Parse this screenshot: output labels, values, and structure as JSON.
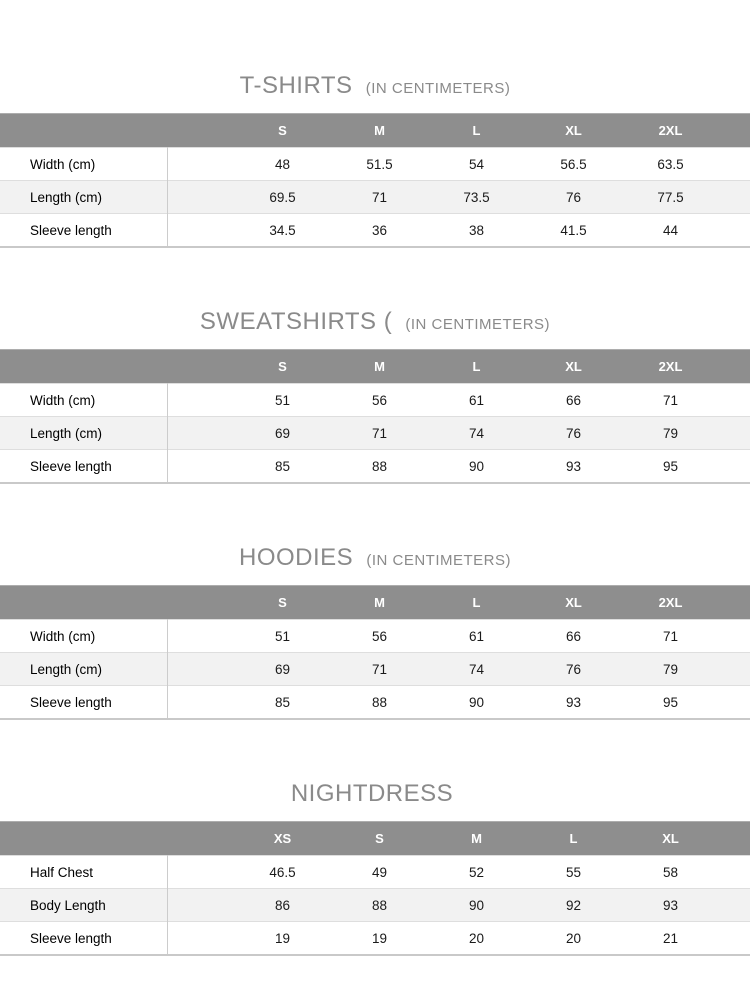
{
  "colors": {
    "header_bg": "#8e8e8e",
    "header_text": "#ffffff",
    "row_alt_bg": "#f2f2f2",
    "border": "#dedede",
    "table_bottom_border": "#c9c9c9",
    "title_text": "#8a8a8a",
    "cell_text": "#1a1a1a"
  },
  "tables": [
    {
      "title": "T-SHIRTS",
      "subtitle": "(IN CENTIMETERS)",
      "columns": [
        "S",
        "M",
        "L",
        "XL",
        "2XL"
      ],
      "rows": [
        {
          "label": "Width (cm)",
          "values": [
            "48",
            "51.5",
            "54",
            "56.5",
            "63.5"
          ]
        },
        {
          "label": "Length (cm)",
          "values": [
            "69.5",
            "71",
            "73.5",
            "76",
            "77.5"
          ]
        },
        {
          "label": "Sleeve length",
          "values": [
            "34.5",
            "36",
            "38",
            "41.5",
            "44"
          ]
        }
      ]
    },
    {
      "title": "SWEATSHIRTS (",
      "subtitle": "(IN CENTIMETERS)",
      "columns": [
        "S",
        "M",
        "L",
        "XL",
        "2XL"
      ],
      "rows": [
        {
          "label": "Width (cm)",
          "values": [
            "51",
            "56",
            "61",
            "66",
            "71"
          ]
        },
        {
          "label": "Length (cm)",
          "values": [
            "69",
            "71",
            "74",
            "76",
            "79"
          ]
        },
        {
          "label": "Sleeve length",
          "values": [
            "85",
            "88",
            "90",
            "93",
            "95"
          ]
        }
      ]
    },
    {
      "title": "HOODIES",
      "subtitle": "(IN CENTIMETERS)",
      "columns": [
        "S",
        "M",
        "L",
        "XL",
        "2XL"
      ],
      "rows": [
        {
          "label": "Width (cm)",
          "values": [
            "51",
            "56",
            "61",
            "66",
            "71"
          ]
        },
        {
          "label": "Length (cm)",
          "values": [
            "69",
            "71",
            "74",
            "76",
            "79"
          ]
        },
        {
          "label": "Sleeve length",
          "values": [
            "85",
            "88",
            "90",
            "93",
            "95"
          ]
        }
      ]
    },
    {
      "title": "NIGHTDRESS",
      "subtitle": "",
      "columns": [
        "XS",
        "S",
        "M",
        "L",
        "XL"
      ],
      "rows": [
        {
          "label": "Half Chest",
          "values": [
            "46.5",
            "49",
            "52",
            "55",
            "58"
          ]
        },
        {
          "label": "Body Length",
          "values": [
            "86",
            "88",
            "90",
            "92",
            "93"
          ]
        },
        {
          "label": "Sleeve length",
          "values": [
            "19",
            "19",
            "20",
            "20",
            "21"
          ]
        }
      ]
    }
  ]
}
